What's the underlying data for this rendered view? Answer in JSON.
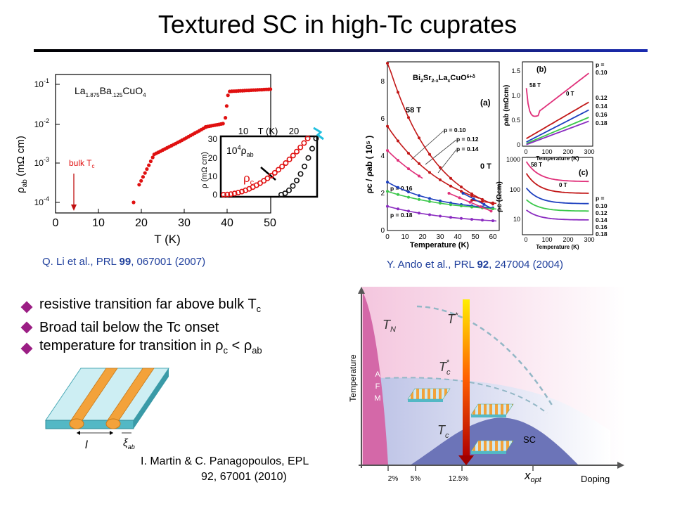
{
  "title": "Textured SC in high-Tc cuprates",
  "colors": {
    "accent": "#1a2bb0",
    "red": "#e01010",
    "bullet": "#9b1e84",
    "dome": "#6c74b8",
    "afm": "#d468a8"
  },
  "panel_left": {
    "material": {
      "p1": "La",
      "s1": "1.875",
      "p2": "Ba",
      "s2": ".125",
      "p3": "CuO",
      "s3": "4"
    },
    "ylabel": {
      "main": "ρ",
      "sub": "ab",
      "unit": "(mΩ cm)"
    },
    "xlabel": "T (K)",
    "yticks": [
      {
        "b": "10",
        "e": "-1"
      },
      {
        "b": "10",
        "e": "-2"
      },
      {
        "b": "10",
        "e": "-3"
      },
      {
        "b": "10",
        "e": "-4"
      }
    ],
    "xticks": [
      "0",
      "10",
      "20",
      "30",
      "40",
      "50"
    ],
    "bulk_tc": {
      "main": "bulk T",
      "sub": "c"
    },
    "inset": {
      "xticks": [
        "10",
        "T (K)",
        "20"
      ],
      "ylabel": "ρ (mΩ cm)",
      "yticks": [
        "30",
        "20",
        "10",
        "0"
      ],
      "label_ab": {
        "pre": "10",
        "sup": "4",
        "main": "ρ",
        "sub": "ab"
      },
      "label_c": {
        "main": "ρ",
        "sub": "c"
      }
    },
    "citation": {
      "pre": "Q. Li et al., PRL ",
      "vol": "99",
      "post": ", 067001 (2007)"
    }
  },
  "panel_right": {
    "formula": {
      "a": "Bi",
      "s1": "2",
      "b": "Sr",
      "s2": "2-x",
      "c": "La",
      "s3": "x",
      "d": "CuO",
      "s4": "6+δ"
    },
    "panel_a": {
      "tag": "(a)",
      "field": "58 T",
      "zero": "0 T",
      "yticks": [
        "0",
        "2",
        "4",
        "6",
        "8"
      ],
      "xticks": [
        "0",
        "10",
        "20",
        "30",
        "40",
        "50",
        "60"
      ],
      "xlabel": "Temperature (K)",
      "ylabel": "ρc / ρab  ( 10⁵ )",
      "p_labels": [
        "p = 0.10",
        "p = 0.12",
        "p = 0.14",
        "p = 0.16",
        "p = 0.18"
      ]
    },
    "panel_b": {
      "tag": "(b)",
      "field": "58 T",
      "zero": "0 T",
      "ylabel": "ρab (mΩcm)",
      "yticks": [
        "1.5",
        "1.0",
        "0.5",
        "0"
      ],
      "xticks": [
        "0",
        "100",
        "200",
        "300"
      ],
      "xlabel": "Temperature (K)",
      "p_labels": [
        "p =",
        "0.10",
        "0.12",
        "0.14",
        "0.16",
        "0.18"
      ]
    },
    "panel_c": {
      "tag": "(c)",
      "field": "58 T",
      "zero": "0 T",
      "ylabel": "ρc (Ωcm)",
      "yticks": [
        "1000",
        "100",
        "10"
      ],
      "xticks": [
        "0",
        "100",
        "200",
        "300"
      ],
      "xlabel": "Temperature (K)",
      "p_labels": [
        "p =",
        "0.10",
        "0.12",
        "0.14",
        "0.16",
        "0.18"
      ]
    },
    "citation": {
      "pre": "Y. Ando et al., PRL ",
      "vol": "92",
      "post": ", 247004 (2004)"
    }
  },
  "bullets": [
    {
      "pre": "resistive transition far above bulk T",
      "sub": "c",
      "mid": "",
      "sub2": ""
    },
    {
      "pre": "Broad tail below the Tc onset",
      "sub": "",
      "mid": "",
      "sub2": ""
    },
    {
      "pre": "temperature for transition in ",
      "rho1": "ρ",
      "sub": "c",
      "mid": " < ",
      "rho2": "ρ",
      "sub2": "ab"
    }
  ],
  "stripe_diagram": {
    "l": "l",
    "xi": "ξ",
    "xi_sub": "ab"
  },
  "citation_martin": {
    "line1": "I. Martin & C. Panagopoulos, EPL",
    "line2": "92, 67001 (2010)"
  },
  "phase": {
    "TN": "T",
    "TN_sub": "N",
    "Tstar": "T",
    "Tstar_sup": "*",
    "Tcstar": "T",
    "Tcstar_sub": "c",
    "Tcstar_sup": "*",
    "Tc": "T",
    "Tc_sub": "c",
    "afm": [
      "A",
      "F",
      "M"
    ],
    "sc": "SC",
    "ylabel": "Temperature",
    "xticks": [
      "2%",
      "5%",
      "12.5%"
    ],
    "xopt": "x",
    "xopt_sub": "opt",
    "doping": "Doping"
  }
}
